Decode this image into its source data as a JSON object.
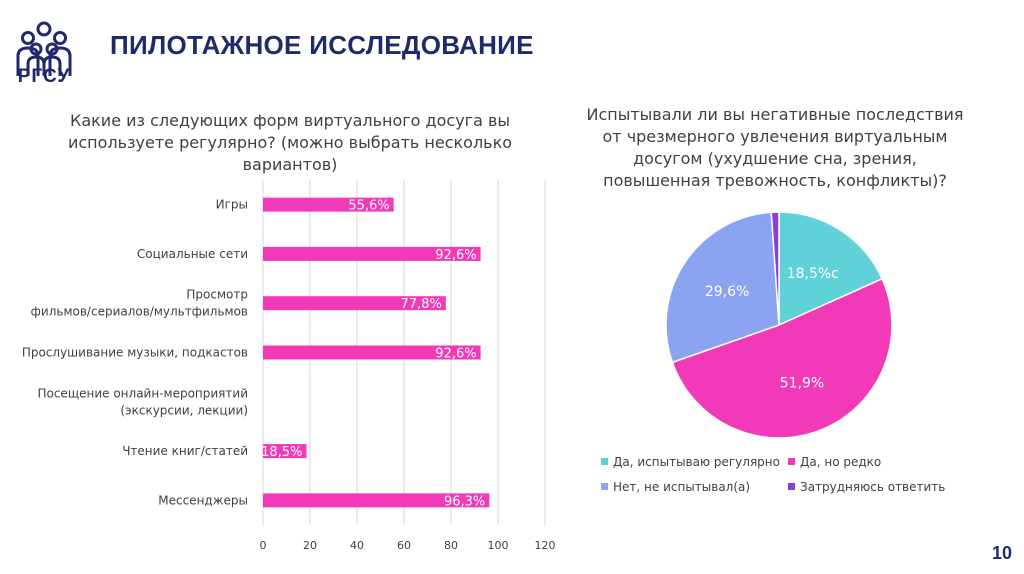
{
  "logo": {
    "text": "РГСУ"
  },
  "header": {
    "title": "ПИЛОТАЖНОЕ ИССЛЕДОВАНИЕ"
  },
  "page_number": "10",
  "colors": {
    "accent_pink": "#f23ab8",
    "teal": "#5fd1d9",
    "periwinkle": "#8ba3f0",
    "purple": "#8a3fd6",
    "brand_navy": "#1f2a6b"
  },
  "chart_data": [
    {
      "type": "bar",
      "orientation": "horizontal",
      "title_lines": [
        "Какие из следующих форм виртуального досуга вы",
        "используете регулярно? (можно выбрать несколько",
        "вариантов)"
      ],
      "categories": [
        [
          "Игры"
        ],
        [
          "Социальные сети"
        ],
        [
          "Просмотр",
          "фильмов/сериалов/мультфильмов"
        ],
        [
          "Прослушивание музыки, подкастов"
        ],
        [
          "Посещение онлайн-мероприятий",
          "(экскурсии, лекции)"
        ],
        [
          "Чтение книг/статей"
        ],
        [
          "Мессенджеры"
        ]
      ],
      "values": [
        55.6,
        92.6,
        77.8,
        92.6,
        0,
        18.5,
        96.3
      ],
      "value_labels": [
        "55,6%",
        "92,6%",
        "77,8%",
        "92,6%",
        "",
        "18,5%",
        "96,3%"
      ],
      "xlim": [
        0,
        120
      ],
      "ticks": [
        "0",
        "20",
        "40",
        "60",
        "80",
        "100",
        "120"
      ],
      "grid": true
    },
    {
      "type": "pie",
      "title_lines": [
        "Испытывали ли вы негативные последствия",
        "от чрезмерного увлечения виртуальным",
        "досугом (ухудшение сна, зрения,",
        "повышенная тревожность, конфликты)?"
      ],
      "labels": [
        "Да, испытываю регулярно",
        "Да, но редко",
        "Нет, не испытывал(а)",
        "Затрудняюсь ответить"
      ],
      "values": [
        18.5,
        51.9,
        29.6,
        1.1
      ],
      "value_labels": [
        "18,5%с",
        "51,9%",
        "29,6%",
        ""
      ],
      "colors": [
        "#5fd1d9",
        "#f23ab8",
        "#8ba3f0",
        "#8a3fd6"
      ],
      "legend_position": "bottom"
    }
  ]
}
